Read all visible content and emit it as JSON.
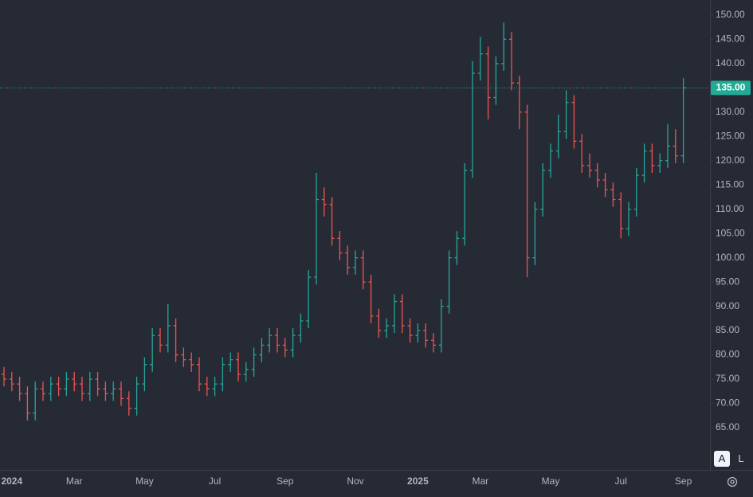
{
  "chart_data": {
    "type": "ohlc",
    "categories": [
      null,
      "2024",
      null,
      null,
      null,
      null,
      null,
      null,
      null,
      "Mar",
      null,
      null,
      null,
      null,
      null,
      null,
      null,
      null,
      "May",
      null,
      null,
      null,
      null,
      null,
      null,
      null,
      null,
      "Jul",
      null,
      null,
      null,
      null,
      null,
      null,
      null,
      null,
      "Sep",
      null,
      null,
      null,
      null,
      null,
      null,
      null,
      null,
      "Nov",
      null,
      null,
      null,
      null,
      null,
      null,
      null,
      "2025",
      null,
      null,
      null,
      null,
      null,
      null,
      null,
      "Mar",
      null,
      null,
      null,
      null,
      null,
      null,
      null,
      null,
      "May",
      null,
      null,
      null,
      null,
      null,
      null,
      null,
      null,
      "Jul",
      null,
      null,
      null,
      null,
      null,
      null,
      null,
      "Sep"
    ],
    "open": [
      76,
      75,
      74,
      72,
      68,
      73,
      72,
      74,
      73,
      75,
      74,
      72,
      75,
      73,
      72,
      73,
      71,
      69,
      74,
      78,
      84,
      82,
      86,
      80,
      79,
      78,
      74,
      73,
      74,
      78,
      79,
      76,
      77,
      80,
      82,
      84,
      82,
      81,
      84,
      87,
      96,
      112,
      111,
      104,
      101,
      98,
      100,
      95,
      88,
      85,
      86,
      91,
      86,
      84,
      85,
      83,
      82,
      90,
      100,
      104,
      118,
      138,
      142,
      133,
      140,
      145,
      136,
      130,
      100,
      110,
      118,
      122,
      126,
      132,
      124,
      119,
      118,
      116,
      114,
      112,
      106,
      110,
      117,
      122,
      119,
      120,
      123,
      121
    ],
    "high": [
      77.5,
      76.5,
      75.5,
      73.5,
      74.5,
      74.5,
      75.5,
      75.5,
      76.5,
      76.5,
      75.5,
      76.5,
      76.5,
      74.5,
      74.5,
      74.5,
      72.5,
      75.5,
      79.5,
      85.5,
      85.5,
      90.5,
      87.5,
      81.5,
      80.5,
      79.5,
      75.5,
      75.5,
      79.5,
      80.5,
      80.5,
      78.5,
      81.5,
      83.5,
      85.5,
      85.5,
      83.5,
      85.5,
      88.5,
      97.5,
      117.5,
      114.5,
      112.5,
      105.5,
      102.5,
      101.5,
      101.5,
      96.5,
      89.5,
      87.5,
      92.5,
      92.5,
      87.5,
      86.5,
      86.5,
      84.5,
      91.5,
      101.5,
      105.5,
      119.5,
      140.5,
      145.5,
      143.5,
      141.5,
      148.5,
      146.5,
      137.5,
      131.5,
      111.5,
      119.5,
      123.5,
      129.5,
      134.5,
      133.5,
      125.5,
      121.5,
      119.5,
      117.5,
      115.5,
      113.5,
      111.5,
      118.5,
      123.5,
      123.5,
      121.5,
      127.5,
      126.5,
      137
    ],
    "low": [
      73.5,
      72.5,
      70.5,
      66.5,
      66.5,
      70.5,
      70.5,
      71.5,
      71.5,
      72.5,
      70.5,
      70.5,
      71.5,
      70.5,
      70.5,
      69.5,
      67.5,
      67.5,
      72.5,
      76.5,
      80.5,
      80.5,
      78.5,
      77.5,
      76.5,
      72.5,
      71.5,
      71.5,
      72.5,
      76.5,
      74.5,
      74.5,
      75.5,
      78.5,
      80.5,
      80.5,
      79.5,
      79.5,
      82.5,
      85.5,
      94.5,
      108.5,
      102.5,
      99.5,
      96.5,
      96.5,
      93.5,
      86.5,
      83.5,
      83.5,
      84.5,
      84.5,
      82.5,
      82.5,
      81.5,
      80.5,
      80.5,
      88.5,
      98.5,
      102.5,
      116.5,
      136.5,
      128.5,
      131.5,
      138.5,
      134.5,
      126.5,
      96,
      98.5,
      108.5,
      116.5,
      120.5,
      124.5,
      122.5,
      117.5,
      116.5,
      114.5,
      112.5,
      110.5,
      104,
      104.5,
      108.5,
      115.5,
      117.5,
      117.5,
      118.5,
      119.5,
      119.5
    ],
    "close": [
      75,
      74,
      72,
      68,
      73,
      72,
      74,
      73,
      75,
      74,
      72,
      75,
      73,
      72,
      73,
      71,
      69,
      74,
      78,
      84,
      82,
      86,
      80,
      79,
      78,
      74,
      73,
      74,
      78,
      79,
      76,
      77,
      80,
      82,
      84,
      82,
      81,
      84,
      87,
      96,
      112,
      111,
      104,
      101,
      98,
      100,
      95,
      88,
      85,
      86,
      91,
      86,
      84,
      85,
      83,
      82,
      90,
      100,
      104,
      118,
      138,
      142,
      133,
      140,
      145,
      136,
      130,
      100,
      110,
      118,
      122,
      126,
      132,
      124,
      119,
      118,
      116,
      114,
      112,
      106,
      110,
      117,
      122,
      119,
      120,
      123,
      121,
      135
    ],
    "up_color": "#26a69a",
    "down_color": "#ef5350",
    "ylim": [
      56.3,
      153.1
    ],
    "yticks": [
      {
        "value": 65,
        "label": "65.00"
      },
      {
        "value": 70,
        "label": "70.00"
      },
      {
        "value": 75,
        "label": "75.00"
      },
      {
        "value": 80,
        "label": "80.00"
      },
      {
        "value": 85,
        "label": "85.00"
      },
      {
        "value": 90,
        "label": "90.00"
      },
      {
        "value": 95,
        "label": "95.00"
      },
      {
        "value": 100,
        "label": "100.00"
      },
      {
        "value": 105,
        "label": "105.00"
      },
      {
        "value": 110,
        "label": "110.00"
      },
      {
        "value": 115,
        "label": "115.00"
      },
      {
        "value": 120,
        "label": "120.00"
      },
      {
        "value": 125,
        "label": "125.00"
      },
      {
        "value": 130,
        "label": "130.00"
      },
      {
        "value": 135,
        "label": "135.00"
      },
      {
        "value": 140,
        "label": "140.00"
      },
      {
        "value": 145,
        "label": "145.00"
      },
      {
        "value": 150,
        "label": "150.00"
      }
    ],
    "price_line": {
      "value": 135,
      "label": "135.00",
      "color": "#22ab94"
    }
  },
  "controls": [
    "A",
    "L"
  ]
}
